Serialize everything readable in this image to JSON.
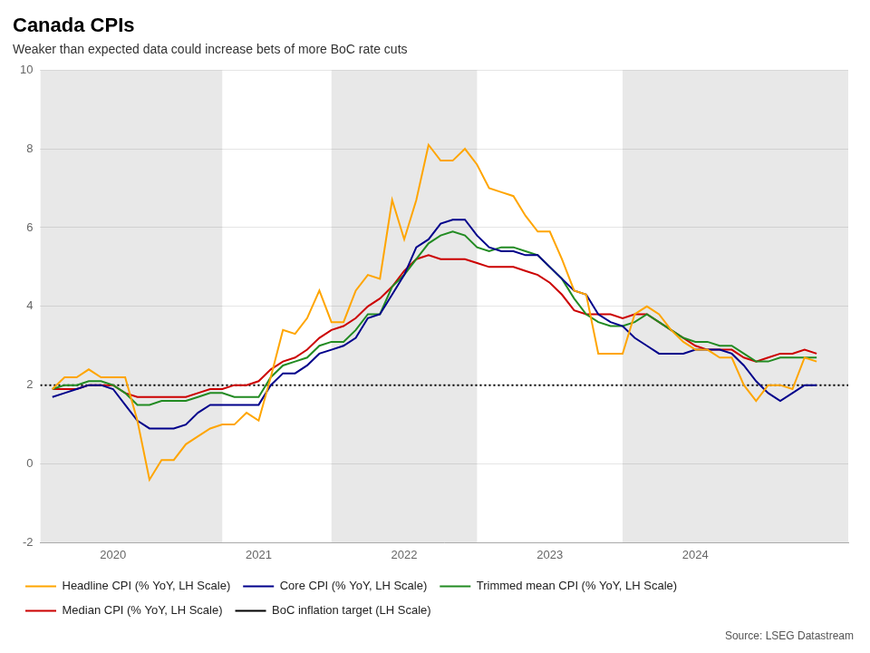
{
  "chart_data": {
    "type": "line",
    "title": "Canada CPIs",
    "subtitle": "Weaker than expected data could increase bets of more BoC rate cuts",
    "annotations": [
      "Source: LSEG Datastream"
    ],
    "x": [
      2019.583,
      2019.667,
      2019.75,
      2019.833,
      2019.917,
      2020.0,
      2020.083,
      2020.167,
      2020.25,
      2020.333,
      2020.417,
      2020.5,
      2020.583,
      2020.667,
      2020.75,
      2020.833,
      2020.917,
      2021.0,
      2021.083,
      2021.167,
      2021.25,
      2021.333,
      2021.417,
      2021.5,
      2021.583,
      2021.667,
      2021.75,
      2021.833,
      2021.917,
      2022.0,
      2022.083,
      2022.167,
      2022.25,
      2022.333,
      2022.417,
      2022.5,
      2022.583,
      2022.667,
      2022.75,
      2022.833,
      2022.917,
      2023.0,
      2023.083,
      2023.167,
      2023.25,
      2023.333,
      2023.417,
      2023.5,
      2023.583,
      2023.667,
      2023.75,
      2023.833,
      2023.917,
      2024.0,
      2024.083,
      2024.167,
      2024.25,
      2024.333,
      2024.417,
      2024.5,
      2024.583,
      2024.667,
      2024.75,
      2024.833
    ],
    "series": [
      {
        "name": "Headline CPI (% YoY, LH Scale)",
        "color": "#FFA500",
        "line_style": "solid",
        "values": [
          1.9,
          2.2,
          2.2,
          2.4,
          2.2,
          2.2,
          2.2,
          1.1,
          -0.4,
          0.1,
          0.1,
          0.5,
          0.7,
          0.9,
          1.0,
          1.0,
          1.3,
          1.1,
          2.2,
          3.4,
          3.3,
          3.7,
          4.4,
          3.6,
          3.6,
          4.4,
          4.8,
          4.7,
          6.7,
          5.7,
          6.7,
          8.1,
          7.7,
          7.7,
          8.0,
          7.6,
          7.0,
          6.9,
          6.8,
          6.3,
          5.9,
          5.9,
          5.2,
          4.4,
          4.3,
          2.8,
          2.8,
          2.8,
          3.8,
          4.0,
          3.8,
          3.4,
          3.1,
          2.9,
          2.9,
          2.7,
          2.7,
          2.0,
          1.6,
          2.0,
          2.0,
          1.9,
          2.7,
          2.6
        ]
      },
      {
        "name": "Core CPI (% YoY, LH Scale)",
        "color": "#00008B",
        "line_style": "solid",
        "values": [
          1.7,
          1.8,
          1.9,
          2.0,
          2.0,
          1.9,
          1.5,
          1.1,
          0.9,
          0.9,
          0.9,
          1.0,
          1.3,
          1.5,
          1.5,
          1.5,
          1.5,
          1.5,
          2.0,
          2.3,
          2.3,
          2.5,
          2.8,
          2.9,
          3.0,
          3.2,
          3.7,
          3.8,
          4.3,
          4.8,
          5.5,
          5.7,
          6.1,
          6.2,
          6.2,
          5.8,
          5.5,
          5.4,
          5.4,
          5.3,
          5.3,
          5.0,
          4.7,
          4.4,
          4.3,
          3.8,
          3.6,
          3.5,
          3.2,
          3.0,
          2.8,
          2.8,
          2.8,
          2.9,
          2.9,
          2.9,
          2.8,
          2.5,
          2.1,
          1.8,
          1.6,
          1.8,
          2.0,
          2.0
        ]
      },
      {
        "name": "Trimmed mean CPI (% YoY, LH Scale)",
        "color": "#228B22",
        "line_style": "solid",
        "values": [
          1.9,
          2.0,
          2.0,
          2.1,
          2.1,
          2.0,
          1.8,
          1.5,
          1.5,
          1.6,
          1.6,
          1.6,
          1.7,
          1.8,
          1.8,
          1.7,
          1.7,
          1.7,
          2.2,
          2.5,
          2.6,
          2.7,
          3.0,
          3.1,
          3.1,
          3.4,
          3.8,
          3.8,
          4.5,
          4.8,
          5.2,
          5.6,
          5.8,
          5.9,
          5.8,
          5.5,
          5.4,
          5.5,
          5.5,
          5.4,
          5.3,
          5.0,
          4.7,
          4.2,
          3.8,
          3.6,
          3.5,
          3.5,
          3.6,
          3.8,
          3.6,
          3.4,
          3.2,
          3.1,
          3.1,
          3.0,
          3.0,
          2.8,
          2.6,
          2.6,
          2.7,
          2.7,
          2.7,
          2.7
        ]
      },
      {
        "name": "Median CPI (% YoY, LH Scale)",
        "color": "#CC0000",
        "line_style": "solid",
        "values": [
          1.9,
          1.9,
          1.9,
          2.0,
          2.0,
          2.0,
          1.8,
          1.7,
          1.7,
          1.7,
          1.7,
          1.7,
          1.8,
          1.9,
          1.9,
          2.0,
          2.0,
          2.1,
          2.4,
          2.6,
          2.7,
          2.9,
          3.2,
          3.4,
          3.5,
          3.7,
          4.0,
          4.2,
          4.5,
          4.9,
          5.2,
          5.3,
          5.2,
          5.2,
          5.2,
          5.1,
          5.0,
          5.0,
          5.0,
          4.9,
          4.8,
          4.6,
          4.3,
          3.9,
          3.8,
          3.8,
          3.8,
          3.7,
          3.8,
          3.8,
          3.6,
          3.4,
          3.2,
          3.0,
          2.9,
          2.9,
          2.9,
          2.7,
          2.6,
          2.7,
          2.8,
          2.8,
          2.9,
          2.8
        ]
      }
    ],
    "reference_lines": [
      {
        "name": "BoC inflation target (LH Scale)",
        "y": 2.0,
        "color": "#000000",
        "line_style": "dotted"
      }
    ],
    "shaded_regions": {
      "color": "#E8E8E8",
      "ranges": [
        [
          2019.5,
          2020.75
        ],
        [
          2021.5,
          2022.5
        ],
        [
          2023.5,
          2025.1
        ]
      ]
    },
    "xlim": [
      2019.5,
      2025.05
    ],
    "xticks": [
      2020,
      2021,
      2022,
      2023,
      2024
    ],
    "ylim": [
      -2,
      10
    ],
    "yticks": [
      -2,
      0,
      2,
      4,
      6,
      8,
      10
    ],
    "grid": true,
    "legend": "bottom"
  }
}
